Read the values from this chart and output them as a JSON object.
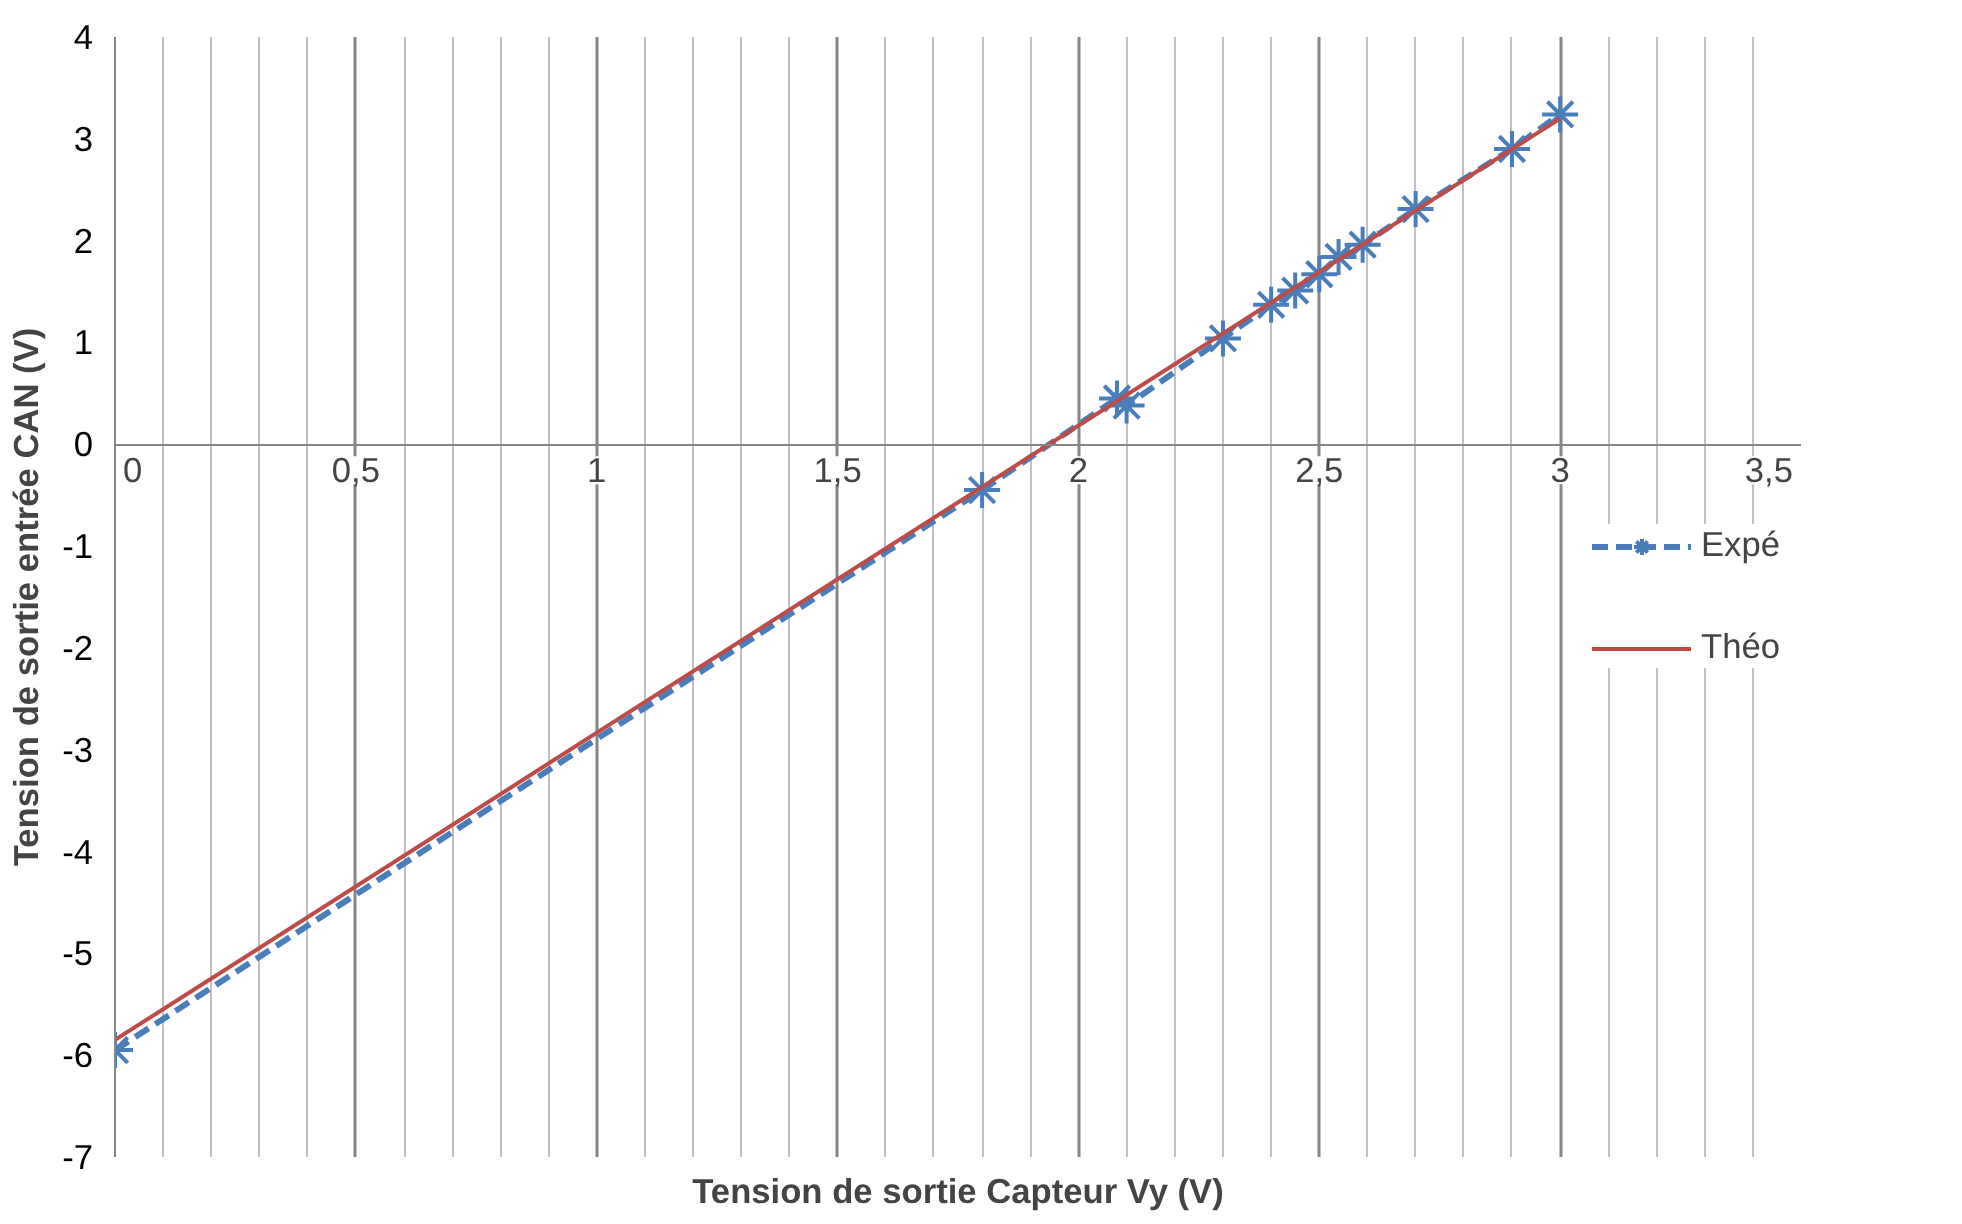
{
  "chart_data": {
    "type": "line",
    "xlabel": "Tension de sortie Capteur Vy (V)",
    "ylabel": "Tension de sortie entrée CAN (V)",
    "series": [
      {
        "name": "Expé",
        "color": "#4a7ebb",
        "marker": "cross",
        "line_style": "dashed",
        "x": [
          0,
          1.8,
          2.08,
          2.1,
          2.3,
          2.4,
          2.45,
          2.5,
          2.54,
          2.59,
          2.7,
          2.9,
          3.0
        ],
        "values": [
          -5.95,
          -0.45,
          0.45,
          0.38,
          1.04,
          1.37,
          1.51,
          1.67,
          1.84,
          1.96,
          2.31,
          2.9,
          3.24
        ]
      },
      {
        "name": "Théo",
        "color": "#be4b48",
        "marker": "none",
        "line_style": "solid",
        "x": [
          0,
          3.0
        ],
        "values": [
          -5.85,
          3.2
        ]
      }
    ],
    "xlim": [
      0,
      3.5
    ],
    "ylim": [
      -7,
      4
    ],
    "xticks": [
      {
        "value": 0,
        "label": "0"
      },
      {
        "value": 0.1,
        "label": null
      },
      {
        "value": 0.2,
        "label": null
      },
      {
        "value": 0.3,
        "label": null
      },
      {
        "value": 0.4,
        "label": null
      },
      {
        "value": 0.5,
        "label": "0,5"
      },
      {
        "value": 0.6,
        "label": null
      },
      {
        "value": 0.7,
        "label": null
      },
      {
        "value": 0.8,
        "label": null
      },
      {
        "value": 0.9,
        "label": null
      },
      {
        "value": 1,
        "label": "1"
      },
      {
        "value": 1.1,
        "label": null
      },
      {
        "value": 1.2,
        "label": null
      },
      {
        "value": 1.3,
        "label": null
      },
      {
        "value": 1.4,
        "label": null
      },
      {
        "value": 1.5,
        "label": "1,5"
      },
      {
        "value": 1.6,
        "label": null
      },
      {
        "value": 1.7,
        "label": null
      },
      {
        "value": 1.8,
        "label": null
      },
      {
        "value": 1.9,
        "label": null
      },
      {
        "value": 2,
        "label": "2"
      },
      {
        "value": 2.1,
        "label": null
      },
      {
        "value": 2.2,
        "label": null
      },
      {
        "value": 2.3,
        "label": null
      },
      {
        "value": 2.4,
        "label": null
      },
      {
        "value": 2.5,
        "label": "2,5"
      },
      {
        "value": 2.6,
        "label": null
      },
      {
        "value": 2.7,
        "label": null
      },
      {
        "value": 2.8,
        "label": null
      },
      {
        "value": 2.9,
        "label": null
      },
      {
        "value": 3,
        "label": "3"
      },
      {
        "value": 3.1,
        "label": null
      },
      {
        "value": 3.2,
        "label": null
      },
      {
        "value": 3.3,
        "label": null
      },
      {
        "value": 3.4,
        "label": null
      },
      {
        "value": 3.5,
        "label": "3,5"
      }
    ],
    "yticks": [
      -7,
      -6,
      -5,
      -4,
      -3,
      -2,
      -1,
      0,
      1,
      2,
      3,
      4
    ],
    "grid": "x",
    "legend": "right"
  }
}
